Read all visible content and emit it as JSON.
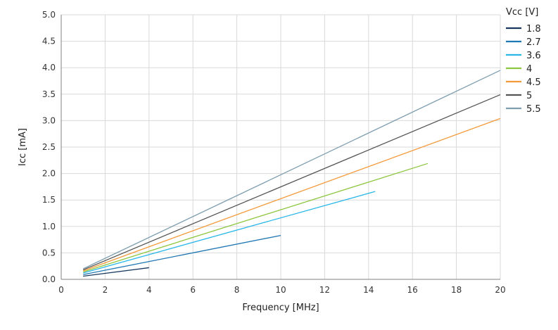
{
  "chart_data": {
    "type": "line",
    "title": "",
    "xlabel": "Frequency [MHz]",
    "ylabel": "Icc [mA]",
    "xlim": [
      0,
      20
    ],
    "ylim": [
      0,
      5
    ],
    "xticks": [
      0,
      2,
      4,
      6,
      8,
      10,
      12,
      14,
      16,
      18,
      20
    ],
    "yticks": [
      "0.0",
      "0.5",
      "1.0",
      "1.5",
      "2.0",
      "2.5",
      "3.0",
      "3.5",
      "4.0",
      "4.5",
      "5.0"
    ],
    "grid": true,
    "legend": {
      "title": "Vcc [V]",
      "position": "right"
    },
    "series": [
      {
        "name": "1.8",
        "color": "#17375e",
        "x": [
          1,
          4
        ],
        "y": [
          0.06,
          0.22
        ]
      },
      {
        "name": "2.7",
        "color": "#1f77b4",
        "x": [
          1,
          10
        ],
        "y": [
          0.09,
          0.83
        ]
      },
      {
        "name": "3.6",
        "color": "#29b6e8",
        "x": [
          1,
          14.3
        ],
        "y": [
          0.12,
          1.66
        ]
      },
      {
        "name": "4",
        "color": "#8dc63f",
        "x": [
          1,
          16.7
        ],
        "y": [
          0.14,
          2.19
        ]
      },
      {
        "name": "4.5",
        "color": "#f39a3a",
        "x": [
          1,
          20
        ],
        "y": [
          0.16,
          3.04
        ]
      },
      {
        "name": "5",
        "color": "#555555",
        "x": [
          1,
          20
        ],
        "y": [
          0.18,
          3.49
        ]
      },
      {
        "name": "5.5",
        "color": "#7f9fb0",
        "x": [
          1,
          20
        ],
        "y": [
          0.2,
          3.95
        ]
      }
    ]
  }
}
